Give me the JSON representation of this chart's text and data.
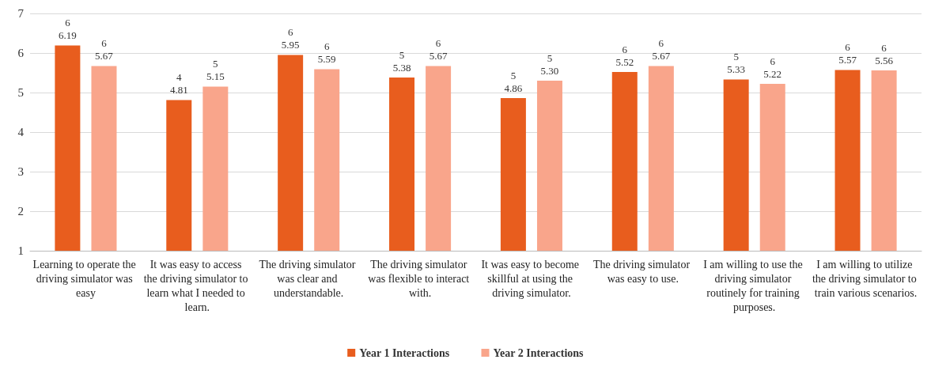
{
  "chart_data": {
    "type": "bar",
    "categories": [
      "Learning to operate the driving simulator was easy",
      "It was easy to access the driving simulator to learn what I needed to learn.",
      "The driving simulator was clear and understandable.",
      "The driving simulator was flexible to interact with.",
      "It was easy to become skillful at using the driving simulator.",
      "The driving simulator was easy to use.",
      "I am willing to use the driving simulator routinely for training purposes.",
      "I am willing to utilize the driving simulator to train various scenarios."
    ],
    "series": [
      {
        "name": "Year 1 Interactions",
        "color": "#e85d1e",
        "values": [
          6.19,
          4.81,
          5.95,
          5.38,
          4.86,
          5.52,
          5.33,
          5.57
        ],
        "value_labels": [
          "6\n6.19",
          "4\n4.81",
          "6\n5.95",
          "5\n5.38",
          "5\n4.86",
          "6\n5.52",
          "5\n5.33",
          "6\n5.57"
        ]
      },
      {
        "name": "Year 2 Interactions",
        "color": "#f9a58b",
        "values": [
          5.67,
          5.15,
          5.59,
          5.67,
          5.3,
          5.67,
          5.22,
          5.56
        ],
        "value_labels": [
          "6\n5.67",
          "5\n5.15",
          "6\n5.59",
          "6\n5.67",
          "5\n5.30",
          "6\n5.67",
          "6\n5.22",
          "6\n5.56"
        ]
      }
    ],
    "ylim": [
      1,
      7
    ],
    "yticks": [
      1,
      2,
      3,
      4,
      5,
      6,
      7
    ],
    "grid": "y",
    "legend": "bottom"
  }
}
